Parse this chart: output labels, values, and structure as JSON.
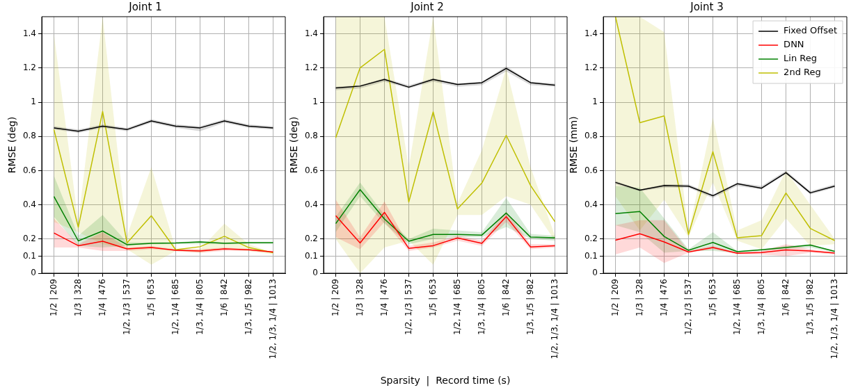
{
  "chart_data": [
    {
      "type": "line",
      "title": "Joint 1",
      "ylabel": "RMSE (deg)",
      "grid": true,
      "categories": [
        "1/2 | 209",
        "1/3 | 328",
        "1/4 | 476",
        "1/2, 1/3 | 537",
        "1/5 | 653",
        "1/2, 1/4 | 685",
        "1/3, 1/4 | 805",
        "1/6 | 842",
        "1/3, 1/5 | 982",
        "1/2, 1/3, 1/4 | 1013"
      ],
      "ylim": [
        0,
        1.5
      ],
      "yticks": [
        0,
        0.1,
        0.2,
        0.4,
        0.6,
        0.8,
        1.0,
        1.2,
        1.4
      ],
      "series": [
        {
          "color": "#000000",
          "values": [
            0.85,
            0.83,
            0.86,
            0.84,
            0.89,
            0.86,
            0.85,
            0.89,
            0.86,
            0.85
          ],
          "lower": [
            0.84,
            0.82,
            0.85,
            0.83,
            0.88,
            0.85,
            0.83,
            0.88,
            0.85,
            0.84
          ],
          "upper": [
            0.86,
            0.84,
            0.87,
            0.85,
            0.9,
            0.87,
            0.86,
            0.9,
            0.87,
            0.86
          ]
        },
        {
          "color": "#ff0000",
          "values": [
            0.235,
            0.161,
            0.187,
            0.142,
            0.15,
            0.134,
            0.13,
            0.142,
            0.137,
            0.124
          ],
          "lower": [
            0.15,
            0.15,
            0.13,
            0.13,
            0.14,
            0.13,
            0.12,
            0.13,
            0.13,
            0.12
          ],
          "upper": [
            0.32,
            0.17,
            0.24,
            0.15,
            0.16,
            0.14,
            0.14,
            0.15,
            0.14,
            0.13
          ]
        },
        {
          "color": "#008000",
          "values": [
            0.449,
            0.189,
            0.247,
            0.167,
            0.175,
            0.177,
            0.183,
            0.175,
            0.179,
            0.179
          ],
          "lower": [
            0.33,
            0.16,
            0.15,
            0.16,
            0.17,
            0.17,
            0.17,
            0.17,
            0.17,
            0.17
          ],
          "upper": [
            0.57,
            0.22,
            0.34,
            0.18,
            0.18,
            0.18,
            0.19,
            0.18,
            0.18,
            0.18
          ]
        },
        {
          "color": "#bfbf00",
          "values": [
            0.84,
            0.269,
            0.946,
            0.177,
            0.336,
            0.137,
            0.155,
            0.216,
            0.15,
            0.12
          ],
          "lower": [
            0.3,
            0.24,
            0.17,
            0.14,
            0.05,
            0.13,
            0.12,
            0.14,
            0.13,
            0.11
          ],
          "upper": [
            1.4,
            0.3,
            1.5,
            0.22,
            0.62,
            0.14,
            0.14,
            0.29,
            0.17,
            0.12
          ]
        }
      ]
    },
    {
      "type": "line",
      "title": "Joint 2",
      "xlabel": "Sparsity  |  Record time (s)",
      "ylabel": "RMSE (deg)",
      "grid": true,
      "categories": [
        "1/2 | 209",
        "1/3 | 328",
        "1/4 | 476",
        "1/2, 1/3 | 537",
        "1/5 | 653",
        "1/2, 1/4 | 685",
        "1/3, 1/4 | 805",
        "1/6 | 842",
        "1/3, 1/5 | 982",
        "1/2, 1/3, 1/4 | 1013"
      ],
      "ylim": [
        0,
        1.5
      ],
      "yticks": [
        0,
        0.1,
        0.2,
        0.4,
        0.6,
        0.8,
        1.0,
        1.2,
        1.4
      ],
      "series": [
        {
          "color": "#000000",
          "values": [
            1.083,
            1.094,
            1.133,
            1.088,
            1.133,
            1.104,
            1.114,
            1.198,
            1.114,
            1.1
          ],
          "lower": [
            1.07,
            1.08,
            1.12,
            1.08,
            1.12,
            1.09,
            1.1,
            1.18,
            1.1,
            1.09
          ],
          "upper": [
            1.09,
            1.1,
            1.14,
            1.1,
            1.14,
            1.11,
            1.12,
            1.21,
            1.12,
            1.11
          ]
        },
        {
          "color": "#ff0000",
          "values": [
            0.336,
            0.177,
            0.356,
            0.145,
            0.161,
            0.206,
            0.175,
            0.331,
            0.153,
            0.161
          ],
          "lower": [
            0.21,
            0.14,
            0.3,
            0.13,
            0.15,
            0.19,
            0.16,
            0.3,
            0.14,
            0.15
          ],
          "upper": [
            0.43,
            0.21,
            0.42,
            0.16,
            0.18,
            0.22,
            0.19,
            0.36,
            0.17,
            0.17
          ]
        },
        {
          "color": "#008000",
          "values": [
            0.29,
            0.489,
            0.317,
            0.187,
            0.227,
            0.227,
            0.223,
            0.352,
            0.211,
            0.207
          ],
          "lower": [
            0.24,
            0.45,
            0.29,
            0.17,
            0.2,
            0.21,
            0.21,
            0.27,
            0.2,
            0.19
          ],
          "upper": [
            0.33,
            0.53,
            0.34,
            0.2,
            0.26,
            0.25,
            0.24,
            0.44,
            0.23,
            0.22
          ]
        },
        {
          "color": "#bfbf00",
          "values": [
            0.793,
            1.201,
            1.309,
            0.416,
            0.943,
            0.376,
            0.527,
            0.806,
            0.513,
            0.301
          ],
          "lower": [
            0.2,
            0.0,
            0.15,
            0.19,
            0.05,
            0.34,
            0.34,
            0.45,
            0.4,
            0.19
          ],
          "upper": [
            1.5,
            1.5,
            1.5,
            0.62,
            1.5,
            0.41,
            0.72,
            1.2,
            0.62,
            0.22
          ]
        }
      ]
    },
    {
      "type": "line",
      "title": "Joint 3",
      "ylabel": "RMSE (mm)",
      "grid": true,
      "legend": "top right",
      "categories": [
        "1/2 | 209",
        "1/3 | 328",
        "1/4 | 476",
        "1/2, 1/3 | 537",
        "1/5 | 653",
        "1/2, 1/4 | 685",
        "1/3, 1/4 | 805",
        "1/6 | 842",
        "1/3, 1/5 | 982",
        "1/2, 1/3, 1/4 | 1013"
      ],
      "ylim": [
        0,
        1.5
      ],
      "yticks": [
        0,
        0.1,
        0.2,
        0.4,
        0.6,
        0.8,
        1.0,
        1.2,
        1.4
      ],
      "series": [
        {
          "name": "Fixed Offset",
          "color": "#000000",
          "values": [
            0.531,
            0.486,
            0.512,
            0.509,
            0.453,
            0.523,
            0.497,
            0.588,
            0.47,
            0.509
          ],
          "lower": [
            0.52,
            0.48,
            0.5,
            0.5,
            0.44,
            0.51,
            0.49,
            0.58,
            0.46,
            0.5
          ],
          "upper": [
            0.54,
            0.49,
            0.52,
            0.52,
            0.46,
            0.53,
            0.51,
            0.6,
            0.48,
            0.52
          ]
        },
        {
          "name": "DNN",
          "color": "#ff0000",
          "values": [
            0.193,
            0.231,
            0.183,
            0.124,
            0.15,
            0.117,
            0.121,
            0.136,
            0.13,
            0.118
          ],
          "lower": [
            0.11,
            0.15,
            0.06,
            0.12,
            0.14,
            0.11,
            0.11,
            0.1,
            0.12,
            0.11
          ],
          "upper": [
            0.28,
            0.31,
            0.31,
            0.13,
            0.16,
            0.12,
            0.13,
            0.17,
            0.14,
            0.12
          ]
        },
        {
          "name": "Lin Reg",
          "color": "#008000",
          "values": [
            0.349,
            0.361,
            0.215,
            0.134,
            0.18,
            0.126,
            0.137,
            0.15,
            0.165,
            0.128
          ],
          "lower": [
            0.28,
            0.24,
            0.12,
            0.13,
            0.13,
            0.12,
            0.13,
            0.14,
            0.15,
            0.12
          ],
          "upper": [
            0.51,
            0.5,
            0.32,
            0.14,
            0.24,
            0.13,
            0.14,
            0.16,
            0.17,
            0.13
          ]
        },
        {
          "name": "2nd Reg",
          "color": "#bfbf00",
          "values": [
            1.5,
            0.88,
            0.92,
            0.227,
            0.711,
            0.207,
            0.22,
            0.469,
            0.262,
            0.191
          ],
          "lower": [
            0.45,
            0.25,
            0.43,
            0.21,
            0.53,
            0.19,
            0.14,
            0.32,
            0.16,
            0.17
          ],
          "upper": [
            1.5,
            1.5,
            1.41,
            0.24,
            0.91,
            0.25,
            0.31,
            0.6,
            0.4,
            0.2
          ]
        }
      ]
    }
  ]
}
